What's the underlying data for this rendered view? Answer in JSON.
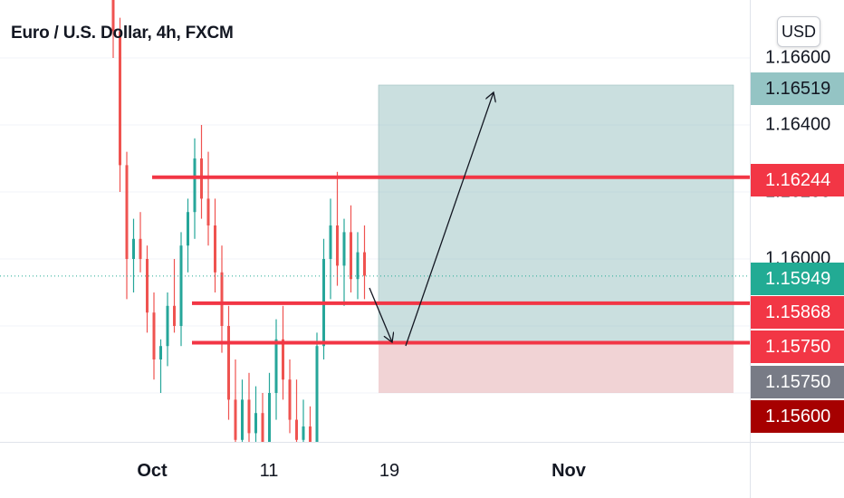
{
  "title": "Euro / U.S. Dollar, 4h, FXCM",
  "currency_button": "USD",
  "colors": {
    "up": "#26a69a",
    "down": "#ef5350",
    "level_line": "#f23645",
    "target_zone": "rgba(159,196,196,0.55)",
    "stop_zone": "rgba(228,168,172,0.5)",
    "current_price": "#22ab94",
    "neutral_badge": "#787b86",
    "stop_badge": "#a60000",
    "target_badge": "#94c4c4"
  },
  "price_axis": {
    "ticks": [
      "1.16600",
      "1.16400",
      "1.16200",
      "1.16000"
    ],
    "badges": [
      {
        "label": "1.16519",
        "kind": "target"
      },
      {
        "label": "1.16244",
        "kind": "level"
      },
      {
        "label": "1.15949",
        "kind": "current"
      },
      {
        "label": "1.15868",
        "kind": "level"
      },
      {
        "label": "1.15750",
        "kind": "level"
      },
      {
        "label": "1.15750",
        "kind": "neutral"
      },
      {
        "label": "1.15600",
        "kind": "stop"
      }
    ]
  },
  "time_axis": {
    "labels": [
      {
        "text": "Oct",
        "bold": true
      },
      {
        "text": "11",
        "bold": false
      },
      {
        "text": "19",
        "bold": false
      },
      {
        "text": "Nov",
        "bold": true
      }
    ]
  },
  "chart_data": {
    "type": "candlestick",
    "symbol": "EURUSD",
    "interval": "4h",
    "horizontal_levels": [
      1.16244,
      1.15868,
      1.1575
    ],
    "current_price": 1.15949,
    "position": {
      "entry": 1.1575,
      "target": 1.16519,
      "stop": 1.156
    },
    "candles": [
      [
        1.1698,
        1.1705,
        1.169,
        1.17
      ],
      [
        1.17,
        1.1706,
        1.1688,
        1.1692
      ],
      [
        1.1692,
        1.17,
        1.166,
        1.1668
      ],
      [
        1.1668,
        1.1672,
        1.162,
        1.1628
      ],
      [
        1.1628,
        1.1632,
        1.1588,
        1.16
      ],
      [
        1.16,
        1.1612,
        1.159,
        1.1606
      ],
      [
        1.1606,
        1.1614,
        1.1596,
        1.16
      ],
      [
        1.16,
        1.1604,
        1.1578,
        1.1584
      ],
      [
        1.1584,
        1.159,
        1.1564,
        1.157
      ],
      [
        1.157,
        1.1576,
        1.156,
        1.1574
      ],
      [
        1.1574,
        1.159,
        1.1568,
        1.1586
      ],
      [
        1.1586,
        1.16,
        1.1578,
        1.158
      ],
      [
        1.158,
        1.1608,
        1.1574,
        1.1604
      ],
      [
        1.1604,
        1.1618,
        1.1596,
        1.1614
      ],
      [
        1.1614,
        1.1636,
        1.1606,
        1.163
      ],
      [
        1.163,
        1.164,
        1.1612,
        1.1618
      ],
      [
        1.1618,
        1.1632,
        1.1604,
        1.161
      ],
      [
        1.161,
        1.1618,
        1.159,
        1.1596
      ],
      [
        1.1596,
        1.1604,
        1.1572,
        1.158
      ],
      [
        1.158,
        1.1586,
        1.1552,
        1.1558
      ],
      [
        1.1558,
        1.157,
        1.154,
        1.1546
      ],
      [
        1.1546,
        1.1564,
        1.1538,
        1.1558
      ],
      [
        1.1558,
        1.1566,
        1.154,
        1.1548
      ],
      [
        1.1548,
        1.1562,
        1.1536,
        1.1554
      ],
      [
        1.1554,
        1.156,
        1.1534,
        1.1542
      ],
      [
        1.1542,
        1.1566,
        1.1536,
        1.156
      ],
      [
        1.156,
        1.1582,
        1.1552,
        1.1576
      ],
      [
        1.1576,
        1.1586,
        1.1558,
        1.1564
      ],
      [
        1.1564,
        1.157,
        1.1548,
        1.1552
      ],
      [
        1.1552,
        1.1564,
        1.154,
        1.1546
      ],
      [
        1.1546,
        1.1558,
        1.1536,
        1.155
      ],
      [
        1.155,
        1.1556,
        1.1534,
        1.154
      ],
      [
        1.154,
        1.1578,
        1.1538,
        1.1574
      ],
      [
        1.1574,
        1.1606,
        1.157,
        1.16
      ],
      [
        1.16,
        1.1618,
        1.1588,
        1.161
      ],
      [
        1.161,
        1.1626,
        1.1592,
        1.1598
      ],
      [
        1.1598,
        1.1612,
        1.1586,
        1.1608
      ],
      [
        1.1608,
        1.1616,
        1.159,
        1.1594
      ],
      [
        1.1594,
        1.1608,
        1.1588,
        1.1602
      ],
      [
        1.1602,
        1.161,
        1.1588,
        1.1595
      ]
    ]
  }
}
